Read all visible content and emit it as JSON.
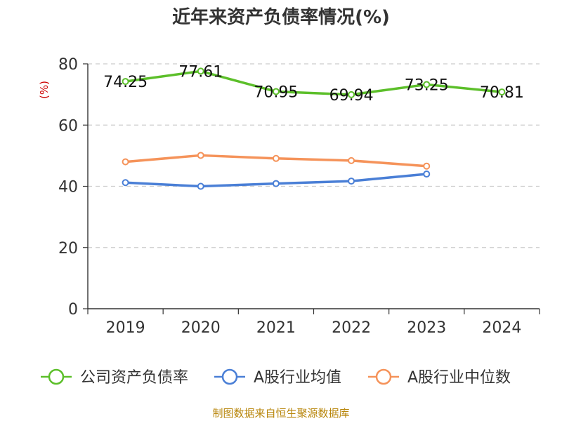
{
  "title": "近年来资产负债率情况(%)",
  "footer": "制图数据来自恒生聚源数据库",
  "chart_data": {
    "type": "line",
    "title": "近年来资产负债率情况(%)",
    "ylabel": "(%)",
    "xlabel": "",
    "categories": [
      "2019",
      "2020",
      "2021",
      "2022",
      "2023",
      "2024"
    ],
    "ylim": [
      0,
      80
    ],
    "yticks": [
      0,
      20,
      40,
      60,
      80
    ],
    "grid": true,
    "legend_position": "bottom",
    "series": [
      {
        "name": "公司资产负债率",
        "color": "#5cbf2a",
        "values": [
          74.25,
          77.61,
          70.95,
          69.94,
          73.25,
          70.81
        ],
        "data_labels": [
          "74.25",
          "77.61",
          "70.95",
          "69.94",
          "73.25",
          "70.81"
        ],
        "show_labels": true
      },
      {
        "name": "A股行业均值",
        "color": "#4a7fd6",
        "values": [
          41.2,
          40.0,
          40.9,
          41.7,
          44.0,
          null
        ],
        "show_labels": false
      },
      {
        "name": "A股行业中位数",
        "color": "#f5935a",
        "values": [
          48.0,
          50.1,
          49.1,
          48.4,
          46.6,
          null
        ],
        "show_labels": false
      }
    ]
  },
  "colors": {
    "title": "#333333",
    "axis": "#333333",
    "grid": "#cccccc",
    "ylabel": "#cc0000",
    "footer": "#b8860b"
  }
}
